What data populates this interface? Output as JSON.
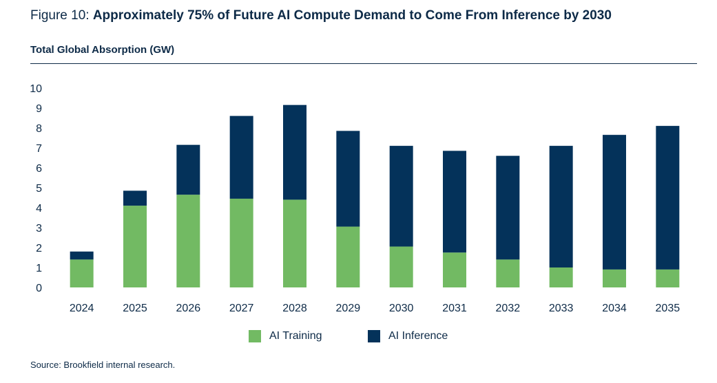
{
  "header": {
    "figure_label": "Figure 10: ",
    "headline": "Approximately 75% of Future AI Compute Demand to Come From Inference by 2030",
    "subtitle": "Total Global Absorption (GW)"
  },
  "colors": {
    "training": "#72ba63",
    "inference": "#04325a",
    "text": "#0d2a47"
  },
  "chart_data": {
    "type": "bar",
    "stacked": true,
    "title": "Total Global Absorption (GW)",
    "xlabel": "",
    "ylabel": "GW",
    "ylim": [
      0,
      10
    ],
    "yticks": [
      0,
      1,
      2,
      3,
      4,
      5,
      6,
      7,
      8,
      9,
      10
    ],
    "categories": [
      "2024",
      "2025",
      "2026",
      "2027",
      "2028",
      "2029",
      "2030",
      "2031",
      "2032",
      "2033",
      "2034",
      "2035"
    ],
    "series": [
      {
        "name": "AI Training",
        "values": [
          1.4,
          4.1,
          4.65,
          4.45,
          4.4,
          3.05,
          2.05,
          1.75,
          1.4,
          1.0,
          0.9,
          0.9
        ]
      },
      {
        "name": "AI Inference",
        "values": [
          0.4,
          0.75,
          2.5,
          4.15,
          4.75,
          4.8,
          5.05,
          5.1,
          5.2,
          6.1,
          6.75,
          7.2
        ]
      }
    ],
    "legend": "bottom-center",
    "grid": false
  },
  "legend": {
    "items": [
      {
        "label": "AI Training"
      },
      {
        "label": "AI Inference"
      }
    ]
  },
  "source": "Source: Brookfield internal research."
}
